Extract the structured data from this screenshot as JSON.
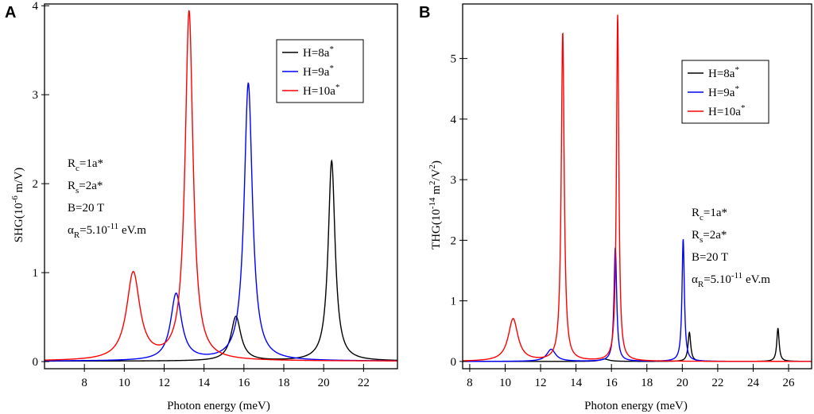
{
  "chart_data": [
    {
      "panel": "A",
      "type": "line",
      "xlabel": "Photon energy (meV)",
      "ylabel": {
        "prefix": "SHG(10",
        "exp": "-6",
        "suffix": " m/V)"
      },
      "xlim": [
        6,
        23.7
      ],
      "ylim": [
        -0.08,
        4.02
      ],
      "xticks": [
        8,
        10,
        12,
        14,
        16,
        18,
        20,
        22
      ],
      "yticks": [
        0,
        1,
        2,
        3,
        4
      ],
      "legend": {
        "position": "top-right"
      },
      "annotations": [
        {
          "main": "R",
          "sub": "c",
          "rest": "=1a*"
        },
        {
          "main": "R",
          "sub": "s",
          "rest": "=2a*"
        },
        {
          "main": "B=20 T",
          "sub": "",
          "rest": ""
        },
        {
          "main": "α",
          "sub": "R",
          "rest": "=5.10",
          "sup": "-11",
          "tail": " eV.m"
        }
      ],
      "series": [
        {
          "name": "H=8a",
          "sup": "*",
          "color": "#000000",
          "peaks": [
            {
              "x0": 15.6,
              "h": 0.5,
              "g": 0.3
            },
            {
              "x0": 20.4,
              "h": 2.25,
              "g": 0.21
            }
          ],
          "baseline": 0.005
        },
        {
          "name": "H=9a",
          "sup": "*",
          "color": "#0000ff",
          "peaks": [
            {
              "x0": 12.6,
              "h": 0.75,
              "g": 0.33
            },
            {
              "x0": 16.22,
              "h": 3.12,
              "g": 0.25
            }
          ],
          "baseline": 0.005
        },
        {
          "name": "H=10a",
          "sup": "*",
          "color": "#ff0000",
          "peaks": [
            {
              "x0": 10.45,
              "h": 0.98,
              "g": 0.4
            },
            {
              "x0": 13.25,
              "h": 3.92,
              "g": 0.24
            }
          ],
          "baseline": 0.005
        }
      ]
    },
    {
      "panel": "B",
      "type": "line",
      "xlabel": "Photon energy (meV)",
      "ylabel": {
        "prefix": "THG(10",
        "exp": "-14",
        "mid": " m",
        "exp2": "2",
        "suffix": "/V",
        "exp3": "2",
        "end": ")"
      },
      "xlim": [
        7.6,
        27.3
      ],
      "ylim": [
        -0.12,
        5.9
      ],
      "xticks": [
        8,
        10,
        12,
        14,
        16,
        18,
        20,
        22,
        24,
        26
      ],
      "yticks": [
        0,
        1,
        2,
        3,
        4,
        5
      ],
      "legend": {
        "position": "top-right"
      },
      "annotations": [
        {
          "main": "R",
          "sub": "c",
          "rest": "=1a*"
        },
        {
          "main": "R",
          "sub": "s",
          "rest": "=2a*"
        },
        {
          "main": "B=20 T",
          "sub": "",
          "rest": ""
        },
        {
          "main": "α",
          "sub": "R",
          "rest": "=5.10",
          "sup": "-11",
          "tail": " eV.m"
        }
      ],
      "series": [
        {
          "name": "H=8a",
          "sup": "*",
          "color": "#000000",
          "peaks": [
            {
              "x0": 15.6,
              "h": 0.04,
              "g": 0.3
            },
            {
              "x0": 20.4,
              "h": 0.48,
              "g": 0.09
            },
            {
              "x0": 25.4,
              "h": 0.55,
              "g": 0.08
            }
          ],
          "baseline": 0.0
        },
        {
          "name": "H=9a",
          "sup": "*",
          "color": "#0000ff",
          "peaks": [
            {
              "x0": 12.6,
              "h": 0.2,
              "g": 0.3
            },
            {
              "x0": 16.22,
              "h": 1.88,
              "g": 0.09
            },
            {
              "x0": 20.05,
              "h": 2.02,
              "g": 0.08
            }
          ],
          "baseline": 0.0
        },
        {
          "name": "H=10a",
          "sup": "*",
          "color": "#ff0000",
          "peaks": [
            {
              "x0": 10.45,
              "h": 0.7,
              "g": 0.33
            },
            {
              "x0": 13.25,
              "h": 5.42,
              "g": 0.1
            },
            {
              "x0": 16.35,
              "h": 5.72,
              "g": 0.08
            }
          ],
          "baseline": 0.0
        }
      ]
    }
  ]
}
